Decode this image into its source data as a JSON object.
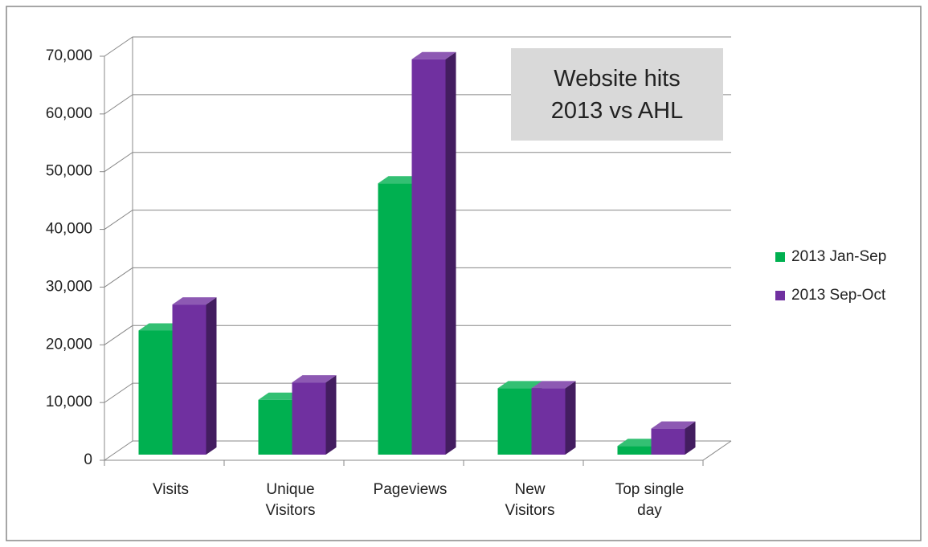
{
  "chart_data": {
    "type": "bar3d",
    "title": "Website hits 2013 vs AHL",
    "categories": [
      "Visits",
      "Unique Visitors",
      "Pageviews",
      "New Visitors",
      "Top single day"
    ],
    "series": [
      {
        "name": "2013 Jan-Sep",
        "color": "#00b050",
        "values": [
          21500,
          9500,
          47000,
          11500,
          1500
        ]
      },
      {
        "name": "2013 Sep-Oct",
        "color": "#7030a0",
        "values": [
          26000,
          12500,
          68500,
          11500,
          4500
        ]
      }
    ],
    "ylim": [
      0,
      70000
    ],
    "yticks": [
      0,
      {
        "value": 10000,
        "label": "10,000"
      },
      {
        "value": 20000,
        "label": "20,000"
      },
      {
        "value": 30000,
        "label": "30,000"
      },
      {
        "value": 40000,
        "label": "40,000"
      },
      {
        "value": 50000,
        "label": "50,000"
      },
      {
        "value": 60000,
        "label": "60,000"
      },
      {
        "value": 70000,
        "label": "70,000"
      }
    ],
    "grid": true,
    "legend": "right"
  }
}
